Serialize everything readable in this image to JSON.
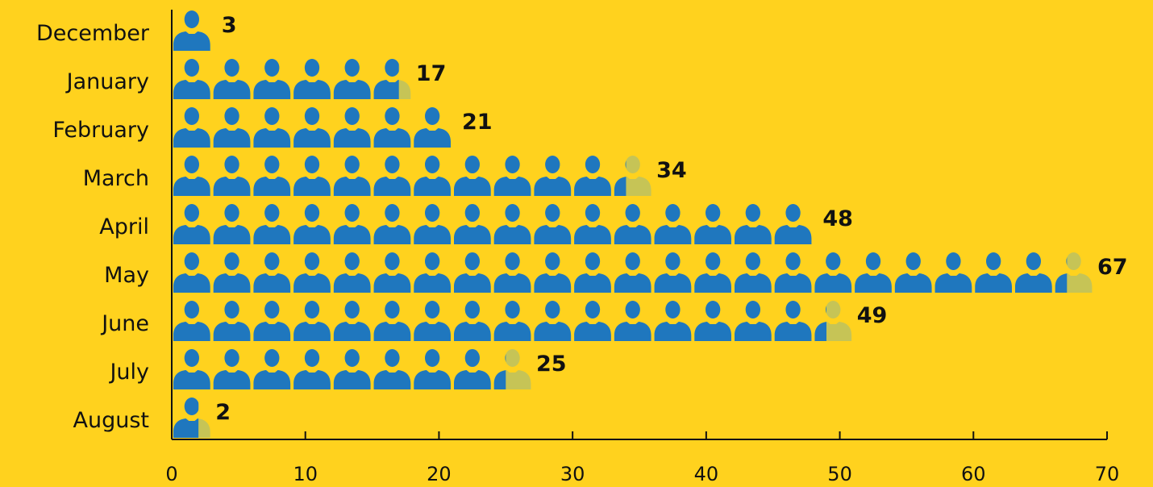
{
  "chart_data": {
    "type": "bar",
    "orientation": "horizontal",
    "style": "pictogram",
    "icon": "person-icon",
    "units_per_icon": 3,
    "categories": [
      "December",
      "January",
      "February",
      "March",
      "April",
      "May",
      "June",
      "July",
      "August"
    ],
    "values": [
      3,
      17,
      21,
      34,
      48,
      67,
      49,
      25,
      2
    ],
    "xlim": [
      0,
      70
    ],
    "xticks": [
      0,
      10,
      20,
      30,
      40,
      50,
      60,
      70
    ],
    "title": "",
    "xlabel": "",
    "ylabel": "",
    "grid": false,
    "legend": false,
    "data_labels": true
  },
  "colors": {
    "background": "#FFD21E",
    "icon_fill": "#1F77BE",
    "icon_partial": "#C6C456",
    "axis": "#111111",
    "text": "#111111"
  }
}
